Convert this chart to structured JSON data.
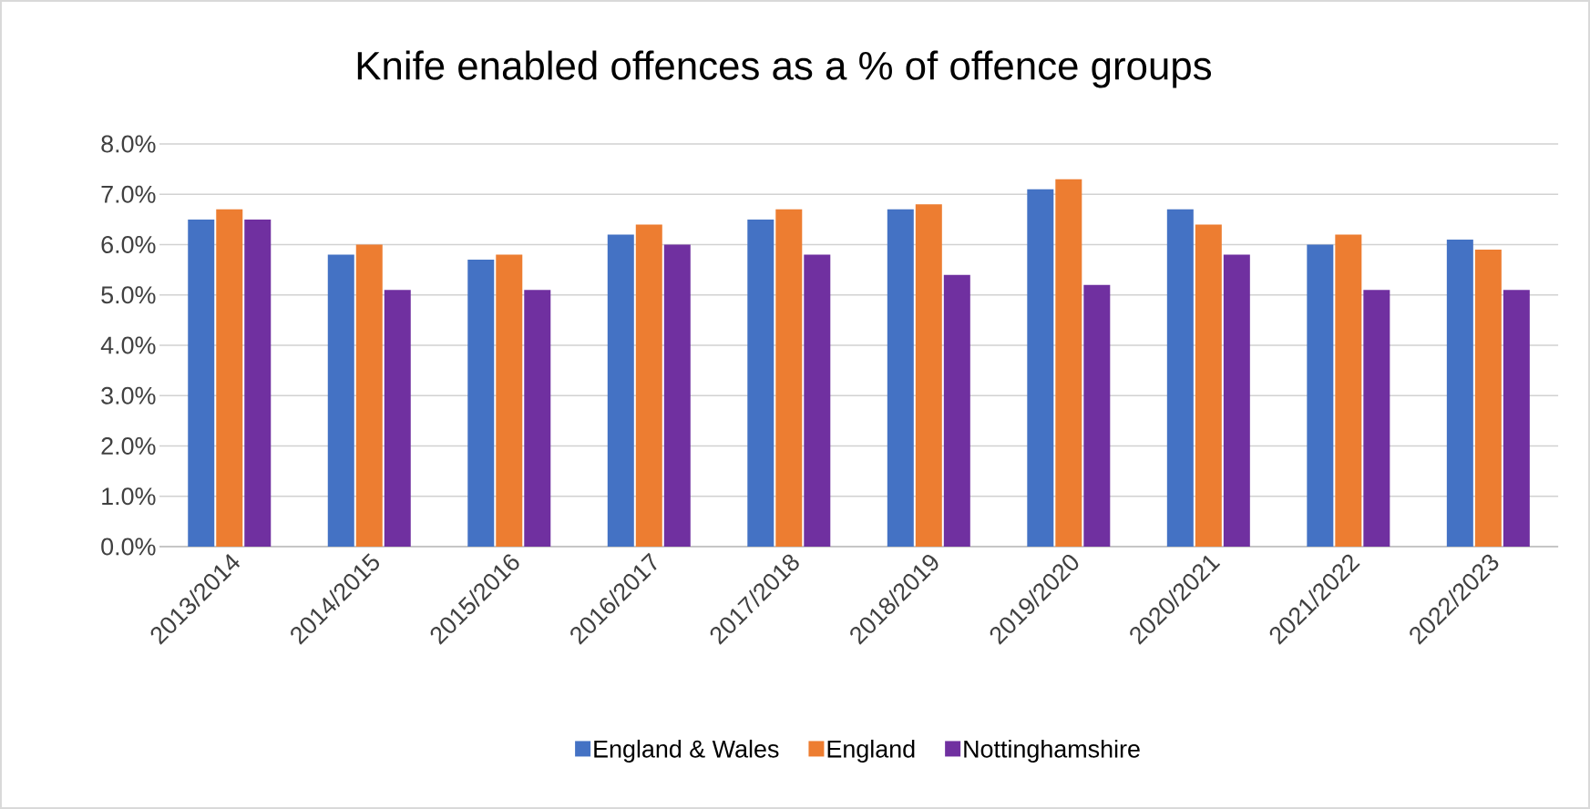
{
  "chart_data": {
    "type": "bar",
    "title": "Knife enabled offences as a % of offence groups",
    "categories": [
      "2013/2014",
      "2014/2015",
      "2015/2016",
      "2016/2017",
      "2017/2018",
      "2018/2019",
      "2019/2020",
      "2020/2021",
      "2021/2022",
      "2022/2023"
    ],
    "series": [
      {
        "name": "England & Wales",
        "color": "#4472c4",
        "values": [
          6.5,
          5.8,
          5.7,
          6.2,
          6.5,
          6.7,
          7.1,
          6.7,
          6.0,
          6.1
        ]
      },
      {
        "name": "England",
        "color": "#ed7d31",
        "values": [
          6.7,
          6.0,
          5.8,
          6.4,
          6.7,
          6.8,
          7.3,
          6.4,
          6.2,
          5.9
        ]
      },
      {
        "name": "Nottinghamshire",
        "color": "#7030a0",
        "values": [
          6.5,
          5.1,
          5.1,
          6.0,
          5.8,
          5.4,
          5.2,
          5.8,
          5.1,
          5.1
        ]
      }
    ],
    "ylim": [
      0,
      8
    ],
    "yticks": [
      {
        "value": 0,
        "label": "0.0%"
      },
      {
        "value": 1,
        "label": "1.0%"
      },
      {
        "value": 2,
        "label": "2.0%"
      },
      {
        "value": 3,
        "label": "3.0%"
      },
      {
        "value": 4,
        "label": "4.0%"
      },
      {
        "value": 5,
        "label": "5.0%"
      },
      {
        "value": 6,
        "label": "6.0%"
      },
      {
        "value": 7,
        "label": "7.0%"
      },
      {
        "value": 8,
        "label": "8.0%"
      }
    ],
    "grid": "y",
    "legend": "bottom"
  }
}
